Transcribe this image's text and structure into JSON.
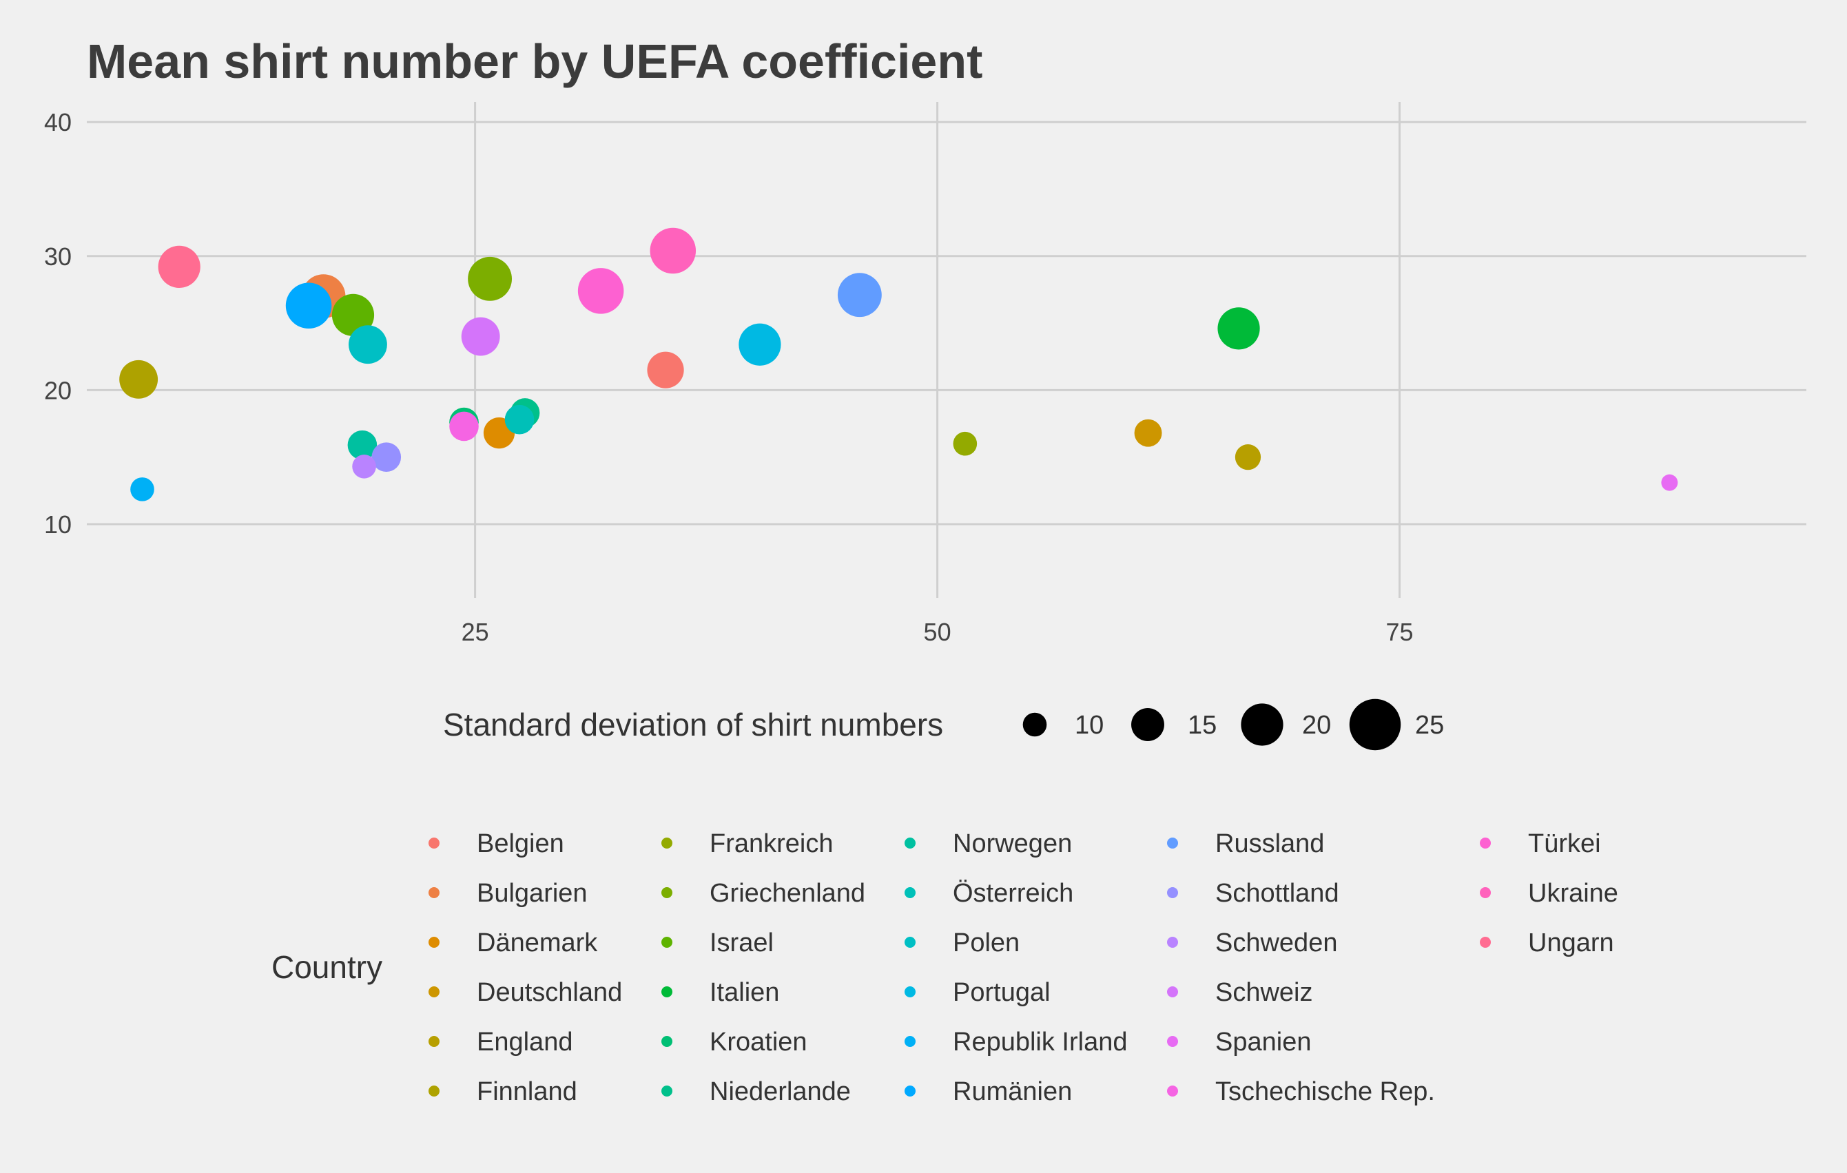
{
  "chart_data": {
    "type": "scatter",
    "title": "Mean shirt number by UEFA coefficient",
    "xlabel": "",
    "ylabel": "",
    "xlim": [
      4,
      97
    ],
    "ylim": [
      4.5,
      41.5
    ],
    "x_ticks": [
      25,
      50,
      75
    ],
    "y_ticks": [
      10,
      20,
      30,
      40
    ],
    "grid": true,
    "size_legend": {
      "title": "Standard deviation of shirt numbers",
      "values": [
        10,
        15,
        20,
        25
      ],
      "labels": [
        "10",
        "15",
        "20",
        "25"
      ],
      "placement": "bottom"
    },
    "color_legend": {
      "title": "Country",
      "placement": "bottom",
      "columns": [
        [
          "Belgien",
          "Bulgarien",
          "Dänemark",
          "Deutschland",
          "England",
          "Finnland"
        ],
        [
          "Frankreich",
          "Griechenland",
          "Israel",
          "Italien",
          "Kroatien",
          "Niederlande"
        ],
        [
          "Norwegen",
          "Österreich",
          "Polen",
          "Portugal",
          "Republik Irland",
          "Rumänien"
        ],
        [
          "Russland",
          "Schottland",
          "Schweden",
          "Schweiz",
          "Spanien",
          "Tschechische Rep."
        ],
        [
          "Türkei",
          "Ukraine",
          "Ungarn"
        ]
      ]
    },
    "series": [
      {
        "name": "Belgien",
        "color": "#F8766D",
        "points": [
          {
            "x": 35.3,
            "y": 21.5,
            "sd": 17
          }
        ]
      },
      {
        "name": "Bulgarien",
        "color": "#EE8044",
        "points": [
          {
            "x": 16.8,
            "y": 27.0,
            "sd": 21
          }
        ]
      },
      {
        "name": "Dänemark",
        "color": "#DE8C00",
        "points": [
          {
            "x": 26.3,
            "y": 16.8,
            "sd": 14
          }
        ]
      },
      {
        "name": "Deutschland",
        "color": "#CD9600",
        "points": [
          {
            "x": 61.4,
            "y": 16.8,
            "sd": 12
          }
        ]
      },
      {
        "name": "England",
        "color": "#B79F00",
        "points": [
          {
            "x": 66.8,
            "y": 15.0,
            "sd": 11
          }
        ]
      },
      {
        "name": "Finnland",
        "color": "#AEA200",
        "points": [
          {
            "x": 6.8,
            "y": 20.8,
            "sd": 18
          }
        ]
      },
      {
        "name": "Frankreich",
        "color": "#93AA00",
        "points": [
          {
            "x": 51.5,
            "y": 16.0,
            "sd": 10
          }
        ]
      },
      {
        "name": "Griechenland",
        "color": "#7CAE00",
        "points": [
          {
            "x": 25.8,
            "y": 28.3,
            "sd": 21
          }
        ]
      },
      {
        "name": "Israel",
        "color": "#5EB300",
        "points": [
          {
            "x": 18.4,
            "y": 25.6,
            "sd": 20
          }
        ]
      },
      {
        "name": "Italien",
        "color": "#00BA38",
        "points": [
          {
            "x": 66.3,
            "y": 24.6,
            "sd": 20
          }
        ]
      },
      {
        "name": "Kroatien",
        "color": "#00BF74",
        "points": [
          {
            "x": 24.4,
            "y": 17.6,
            "sd": 13
          }
        ]
      },
      {
        "name": "Niederlande",
        "color": "#00C08B",
        "points": [
          {
            "x": 27.7,
            "y": 18.3,
            "sd": 13
          }
        ]
      },
      {
        "name": "Norwegen",
        "color": "#00C0A0",
        "points": [
          {
            "x": 18.9,
            "y": 15.9,
            "sd": 13
          }
        ]
      },
      {
        "name": "Österreich",
        "color": "#00C0B8",
        "points": [
          {
            "x": 27.4,
            "y": 17.8,
            "sd": 13
          }
        ]
      },
      {
        "name": "Polen",
        "color": "#00BFC4",
        "points": [
          {
            "x": 19.2,
            "y": 23.4,
            "sd": 18
          }
        ]
      },
      {
        "name": "Portugal",
        "color": "#00B9E3",
        "points": [
          {
            "x": 40.4,
            "y": 23.4,
            "sd": 20
          }
        ]
      },
      {
        "name": "Republik Irland",
        "color": "#00B0F6",
        "points": [
          {
            "x": 7.0,
            "y": 12.6,
            "sd": 10
          }
        ]
      },
      {
        "name": "Rumänien",
        "color": "#00A9FF",
        "points": [
          {
            "x": 16.0,
            "y": 26.3,
            "sd": 22
          }
        ]
      },
      {
        "name": "Russland",
        "color": "#619CFF",
        "points": [
          {
            "x": 45.8,
            "y": 27.1,
            "sd": 21
          }
        ]
      },
      {
        "name": "Schottland",
        "color": "#9590FF",
        "points": [
          {
            "x": 20.2,
            "y": 15.0,
            "sd": 13
          }
        ]
      },
      {
        "name": "Schweden",
        "color": "#B983FF",
        "points": [
          {
            "x": 19.0,
            "y": 14.3,
            "sd": 10
          }
        ]
      },
      {
        "name": "Schweiz",
        "color": "#D474FA",
        "points": [
          {
            "x": 25.3,
            "y": 24.0,
            "sd": 18
          }
        ]
      },
      {
        "name": "Spanien",
        "color": "#E76BF3",
        "points": [
          {
            "x": 89.6,
            "y": 13.1,
            "sd": 6
          }
        ]
      },
      {
        "name": "Tschechische Rep.",
        "color": "#F564E3",
        "points": [
          {
            "x": 24.4,
            "y": 17.3,
            "sd": 13
          }
        ]
      },
      {
        "name": "Türkei",
        "color": "#FD61D1",
        "points": [
          {
            "x": 31.8,
            "y": 27.4,
            "sd": 22
          }
        ]
      },
      {
        "name": "Ukraine",
        "color": "#FF62BC",
        "points": [
          {
            "x": 35.7,
            "y": 30.4,
            "sd": 22
          }
        ]
      },
      {
        "name": "Ungarn",
        "color": "#FF6C91",
        "points": [
          {
            "x": 9.0,
            "y": 29.2,
            "sd": 20
          }
        ]
      }
    ]
  }
}
